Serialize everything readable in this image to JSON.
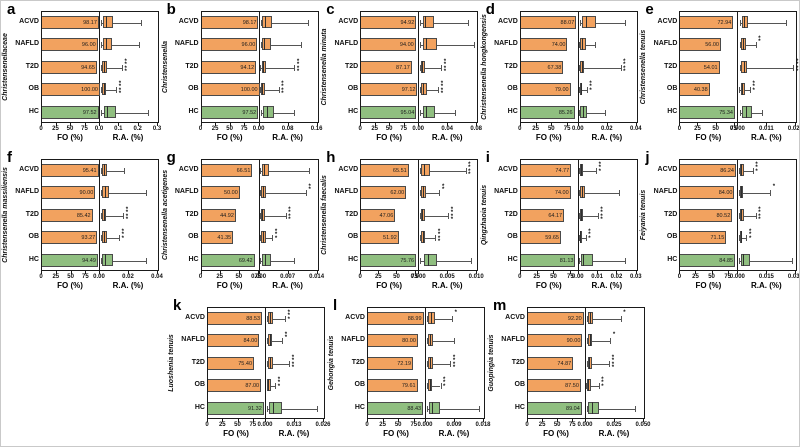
{
  "figure": {
    "groups": [
      "ACVD",
      "NAFLD",
      "T2D",
      "OB",
      "HC"
    ],
    "colors": {
      "disease_bar": "#f2a25f",
      "healthy_bar": "#90bf80",
      "outline": "#4a4a4a"
    },
    "fo_axis_label": "FO (%)",
    "ra_axis_label": "R.A. (%)",
    "fo_ticks": [
      "0",
      "25",
      "50",
      "75"
    ]
  },
  "chart_data": [
    {
      "id": "a",
      "type": "bar",
      "taxon": "Christensenellaceae",
      "fo_percent": [
        98.17,
        96.0,
        94.65,
        100.0,
        97.52
      ],
      "fo_labels": [
        "98.17",
        "96.00",
        "94.65",
        "100.00",
        "97.52"
      ],
      "fo_axis_max_est": 100,
      "ra_ticks": [
        "0.0",
        "0.1",
        "0.2",
        "0.3"
      ],
      "ra_max": 0.3,
      "boxplot_frac_est": [
        [
          0.02,
          0.05,
          0.1,
          0.22,
          0.7
        ],
        [
          0.02,
          0.05,
          0.1,
          0.2,
          0.67
        ],
        [
          0.015,
          0.04,
          0.07,
          0.13,
          0.38
        ],
        [
          0.015,
          0.035,
          0.06,
          0.11,
          0.28
        ],
        [
          0.02,
          0.06,
          0.12,
          0.27,
          0.83
        ]
      ],
      "significance": [
        "",
        "",
        "****",
        "****",
        ""
      ]
    },
    {
      "id": "b",
      "type": "bar",
      "taxon": "Christensenella",
      "fo_percent": [
        98.17,
        96.0,
        94.12,
        100.0,
        97.52
      ],
      "fo_labels": [
        "98.17",
        "96.00",
        "94.12",
        "100.00",
        "97.52"
      ],
      "fo_axis_max_est": 100,
      "ra_ticks": [
        "0.00",
        "0.08",
        "0.16"
      ],
      "ra_max": 0.16,
      "boxplot_frac_est": [
        [
          0.02,
          0.05,
          0.09,
          0.22,
          0.84
        ],
        [
          0.02,
          0.05,
          0.08,
          0.2,
          0.72
        ],
        [
          0.015,
          0.04,
          0.06,
          0.12,
          0.6
        ],
        [
          0.01,
          0.03,
          0.05,
          0.09,
          0.33
        ],
        [
          0.02,
          0.06,
          0.13,
          0.25,
          0.6
        ]
      ],
      "significance": [
        "",
        "",
        "****",
        "****",
        ""
      ]
    },
    {
      "id": "c",
      "type": "bar",
      "taxon": "Christensenella minuta",
      "fo_percent": [
        94.92,
        94.0,
        87.17,
        97.12,
        95.04
      ],
      "fo_labels": [
        "94.92",
        "94.00",
        "87.17",
        "97.12",
        "95.04"
      ],
      "fo_axis_max_est": 100,
      "ra_ticks": [
        "0.00",
        "0.04",
        "0.08"
      ],
      "ra_max": 0.08,
      "boxplot_frac_est": [
        [
          0.02,
          0.06,
          0.1,
          0.25,
          0.85
        ],
        [
          0.02,
          0.06,
          0.12,
          0.3,
          0.95
        ],
        [
          0.01,
          0.03,
          0.05,
          0.1,
          0.38
        ],
        [
          0.015,
          0.04,
          0.07,
          0.13,
          0.33
        ],
        [
          0.02,
          0.06,
          0.12,
          0.28,
          0.62
        ]
      ],
      "significance": [
        "",
        "",
        "****",
        "****",
        ""
      ]
    },
    {
      "id": "d",
      "type": "bar",
      "taxon": "Christensenella hongkongensis",
      "fo_percent": [
        88.07,
        74.0,
        67.38,
        79.0,
        85.26
      ],
      "fo_labels": [
        "88.07",
        "74.00",
        "67.38",
        "79.00",
        "85.26"
      ],
      "fo_axis_max_est": 92,
      "ra_ticks": [
        "0.00",
        "0.02",
        "0.04"
      ],
      "ra_max": 0.04,
      "boxplot_frac_est": [
        [
          0.02,
          0.05,
          0.12,
          0.3,
          0.8
        ],
        [
          0.01,
          0.03,
          0.06,
          0.12,
          0.28
        ],
        [
          0.01,
          0.025,
          0.05,
          0.09,
          0.72
        ],
        [
          0.008,
          0.02,
          0.035,
          0.06,
          0.14
        ],
        [
          0.01,
          0.03,
          0.07,
          0.14,
          0.45
        ]
      ],
      "significance": [
        "",
        "",
        "****",
        "***",
        ""
      ]
    },
    {
      "id": "e",
      "type": "bar",
      "taxon": "Christensenella tenuis",
      "fo_percent": [
        72.94,
        56.0,
        54.01,
        40.38,
        75.34
      ],
      "fo_labels": [
        "72.94",
        "56.00",
        "54.01",
        "40.38",
        "75.34"
      ],
      "fo_axis_max_est": 80,
      "ra_ticks": [
        "0.000",
        "0.011",
        "0.022"
      ],
      "ra_max": 0.022,
      "boxplot_frac_est": [
        [
          0.02,
          0.06,
          0.1,
          0.16,
          0.82
        ],
        [
          0.02,
          0.05,
          0.08,
          0.13,
          0.3
        ],
        [
          0.02,
          0.05,
          0.09,
          0.15,
          0.95
        ],
        [
          0.015,
          0.04,
          0.07,
          0.12,
          0.2
        ],
        [
          0.02,
          0.07,
          0.13,
          0.24,
          0.4
        ]
      ],
      "significance": [
        "",
        "**",
        "****",
        "***",
        ""
      ]
    },
    {
      "id": "f",
      "type": "bar",
      "taxon": "Christensenella massiliensis",
      "fo_percent": [
        95.41,
        90.0,
        85.42,
        93.27,
        94.49
      ],
      "fo_labels": [
        "95.41",
        "90.00",
        "85.42",
        "93.27",
        "94.49"
      ],
      "fo_axis_max_est": 98,
      "ra_ticks": [
        "0.00",
        "0.02",
        "0.04"
      ],
      "ra_max": 0.04,
      "boxplot_frac_est": [
        [
          0.01,
          0.04,
          0.07,
          0.13,
          0.42
        ],
        [
          0.01,
          0.04,
          0.08,
          0.15,
          0.8
        ],
        [
          0.01,
          0.03,
          0.06,
          0.11,
          0.4
        ],
        [
          0.01,
          0.03,
          0.06,
          0.12,
          0.33
        ],
        [
          0.01,
          0.04,
          0.09,
          0.22,
          0.8
        ]
      ],
      "significance": [
        "",
        "",
        "****",
        "***",
        ""
      ]
    },
    {
      "id": "g",
      "type": "bar",
      "taxon": "Christensenella acetigenes",
      "fo_percent": [
        66.51,
        50.0,
        44.92,
        41.35,
        69.42
      ],
      "fo_labels": [
        "66.51",
        "50.00",
        "44.92",
        "41.35",
        "69.42"
      ],
      "fo_axis_max_est": 76,
      "ra_ticks": [
        "0.000",
        "0.007",
        "0.014"
      ],
      "ra_max": 0.014,
      "boxplot_frac_est": [
        [
          0.01,
          0.04,
          0.08,
          0.16,
          0.85
        ],
        [
          0.01,
          0.03,
          0.06,
          0.11,
          0.8
        ],
        [
          0.008,
          0.025,
          0.05,
          0.09,
          0.45
        ],
        [
          0.01,
          0.03,
          0.06,
          0.12,
          0.22
        ],
        [
          0.01,
          0.05,
          0.1,
          0.2,
          0.6
        ]
      ],
      "significance": [
        "",
        "**",
        "****",
        "***",
        ""
      ]
    },
    {
      "id": "h",
      "type": "bar",
      "taxon": "Christensenella faecalis",
      "fo_percent": [
        65.51,
        62.0,
        47.06,
        51.92,
        75.76
      ],
      "fo_labels": [
        "65.51",
        "62.00",
        "47.06",
        "51.92",
        "75.76"
      ],
      "fo_axis_max_est": 80,
      "ra_ticks": [
        "0.000",
        "0.005",
        "0.010"
      ],
      "ra_max": 0.01,
      "boxplot_frac_est": [
        [
          0.01,
          0.04,
          0.08,
          0.18,
          0.8
        ],
        [
          0.01,
          0.03,
          0.06,
          0.12,
          0.35
        ],
        [
          0.008,
          0.03,
          0.05,
          0.1,
          0.5
        ],
        [
          0.01,
          0.03,
          0.06,
          0.11,
          0.28
        ],
        [
          0.02,
          0.08,
          0.15,
          0.3,
          0.9
        ]
      ],
      "significance": [
        "****",
        "**",
        "****",
        "****",
        ""
      ]
    },
    {
      "id": "i",
      "type": "bar",
      "taxon": "Qingzhaoia tenuis",
      "fo_percent": [
        74.77,
        74.0,
        64.17,
        59.65,
        81.13
      ],
      "fo_labels": [
        "74.77",
        "74.00",
        "64.17",
        "59.65",
        "81.13"
      ],
      "fo_axis_max_est": 86,
      "ra_ticks": [
        "0.00",
        "0.01",
        "0.02",
        "0.03"
      ],
      "ra_max": 0.03,
      "boxplot_frac_est": [
        [
          0.008,
          0.02,
          0.04,
          0.08,
          0.3
        ],
        [
          0.008,
          0.03,
          0.06,
          0.11,
          0.7
        ],
        [
          0.008,
          0.02,
          0.04,
          0.08,
          0.33
        ],
        [
          0.005,
          0.015,
          0.03,
          0.06,
          0.12
        ],
        [
          0.01,
          0.04,
          0.08,
          0.25,
          0.8
        ]
      ],
      "significance": [
        "***",
        "",
        "****",
        "***",
        ""
      ]
    },
    {
      "id": "j",
      "type": "bar",
      "taxon": "Feiyania tenuis",
      "fo_percent": [
        86.24,
        84.0,
        80.52,
        71.15,
        84.85
      ],
      "fo_labels": [
        "86.24",
        "84.00",
        "80.52",
        "71.15",
        "84.85"
      ],
      "fo_axis_max_est": 90,
      "ra_ticks": [
        "0.000",
        "0.015",
        "0.030"
      ],
      "ra_max": 0.03,
      "boxplot_frac_est": [
        [
          0.008,
          0.025,
          0.05,
          0.09,
          0.25
        ],
        [
          0.008,
          0.025,
          0.05,
          0.08,
          0.55
        ],
        [
          0.008,
          0.025,
          0.05,
          0.09,
          0.3
        ],
        [
          0.006,
          0.02,
          0.04,
          0.07,
          0.14
        ],
        [
          0.01,
          0.04,
          0.08,
          0.2,
          0.92
        ]
      ],
      "significance": [
        "***",
        "*",
        "****",
        "***",
        ""
      ]
    },
    {
      "id": "k",
      "type": "bar",
      "taxon": "Luoshenia tenuis",
      "fo_percent": [
        88.53,
        84.0,
        75.4,
        87.0,
        91.32
      ],
      "fo_labels": [
        "88.53",
        "84.00",
        "75.40",
        "87.00",
        "91.32"
      ],
      "fo_axis_max_est": 95,
      "ra_ticks": [
        "0.000",
        "0.013",
        "0.026"
      ],
      "ra_max": 0.026,
      "boxplot_frac_est": [
        [
          0.01,
          0.03,
          0.06,
          0.12,
          0.33
        ],
        [
          0.01,
          0.03,
          0.06,
          0.11,
          0.28
        ],
        [
          0.01,
          0.03,
          0.06,
          0.12,
          0.4
        ],
        [
          0.008,
          0.02,
          0.04,
          0.08,
          0.16
        ],
        [
          0.01,
          0.05,
          0.12,
          0.28,
          0.88
        ]
      ],
      "significance": [
        "***",
        "**",
        "****",
        "***",
        ""
      ]
    },
    {
      "id": "l",
      "type": "bar",
      "taxon": "Gehongia tenuis",
      "fo_percent": [
        88.99,
        80.0,
        72.19,
        79.61,
        88.43
      ],
      "fo_labels": [
        "88.99",
        "80.00",
        "72.19",
        "79.61",
        "88.43"
      ],
      "fo_axis_max_est": 93,
      "ra_ticks": [
        "0.000",
        "0.009",
        "0.018"
      ],
      "ra_max": 0.018,
      "boxplot_frac_est": [
        [
          0.01,
          0.04,
          0.08,
          0.15,
          0.45
        ],
        [
          0.01,
          0.04,
          0.07,
          0.13,
          0.48
        ],
        [
          0.01,
          0.03,
          0.06,
          0.12,
          0.42
        ],
        [
          0.01,
          0.03,
          0.06,
          0.11,
          0.25
        ],
        [
          0.015,
          0.05,
          0.1,
          0.25,
          0.92
        ]
      ],
      "significance": [
        "*",
        "",
        "****",
        "***",
        ""
      ]
    },
    {
      "id": "m",
      "type": "bar",
      "taxon": "Guopingia tenuis",
      "fo_percent": [
        92.2,
        90.0,
        74.87,
        87.5,
        89.04
      ],
      "fo_labels": [
        "92.20",
        "90.00",
        "74.87",
        "87.50",
        "89.04"
      ],
      "fo_axis_max_est": 96,
      "ra_ticks": [
        "0.000",
        "0.025",
        "0.050"
      ],
      "ra_max": 0.05,
      "boxplot_frac_est": [
        [
          0.008,
          0.03,
          0.06,
          0.12,
          0.6
        ],
        [
          0.008,
          0.03,
          0.06,
          0.11,
          0.42
        ],
        [
          0.008,
          0.025,
          0.05,
          0.1,
          0.4
        ],
        [
          0.006,
          0.02,
          0.04,
          0.08,
          0.22
        ],
        [
          0.01,
          0.04,
          0.1,
          0.22,
          0.85
        ]
      ],
      "significance": [
        "*",
        "*",
        "****",
        "***",
        ""
      ]
    }
  ]
}
